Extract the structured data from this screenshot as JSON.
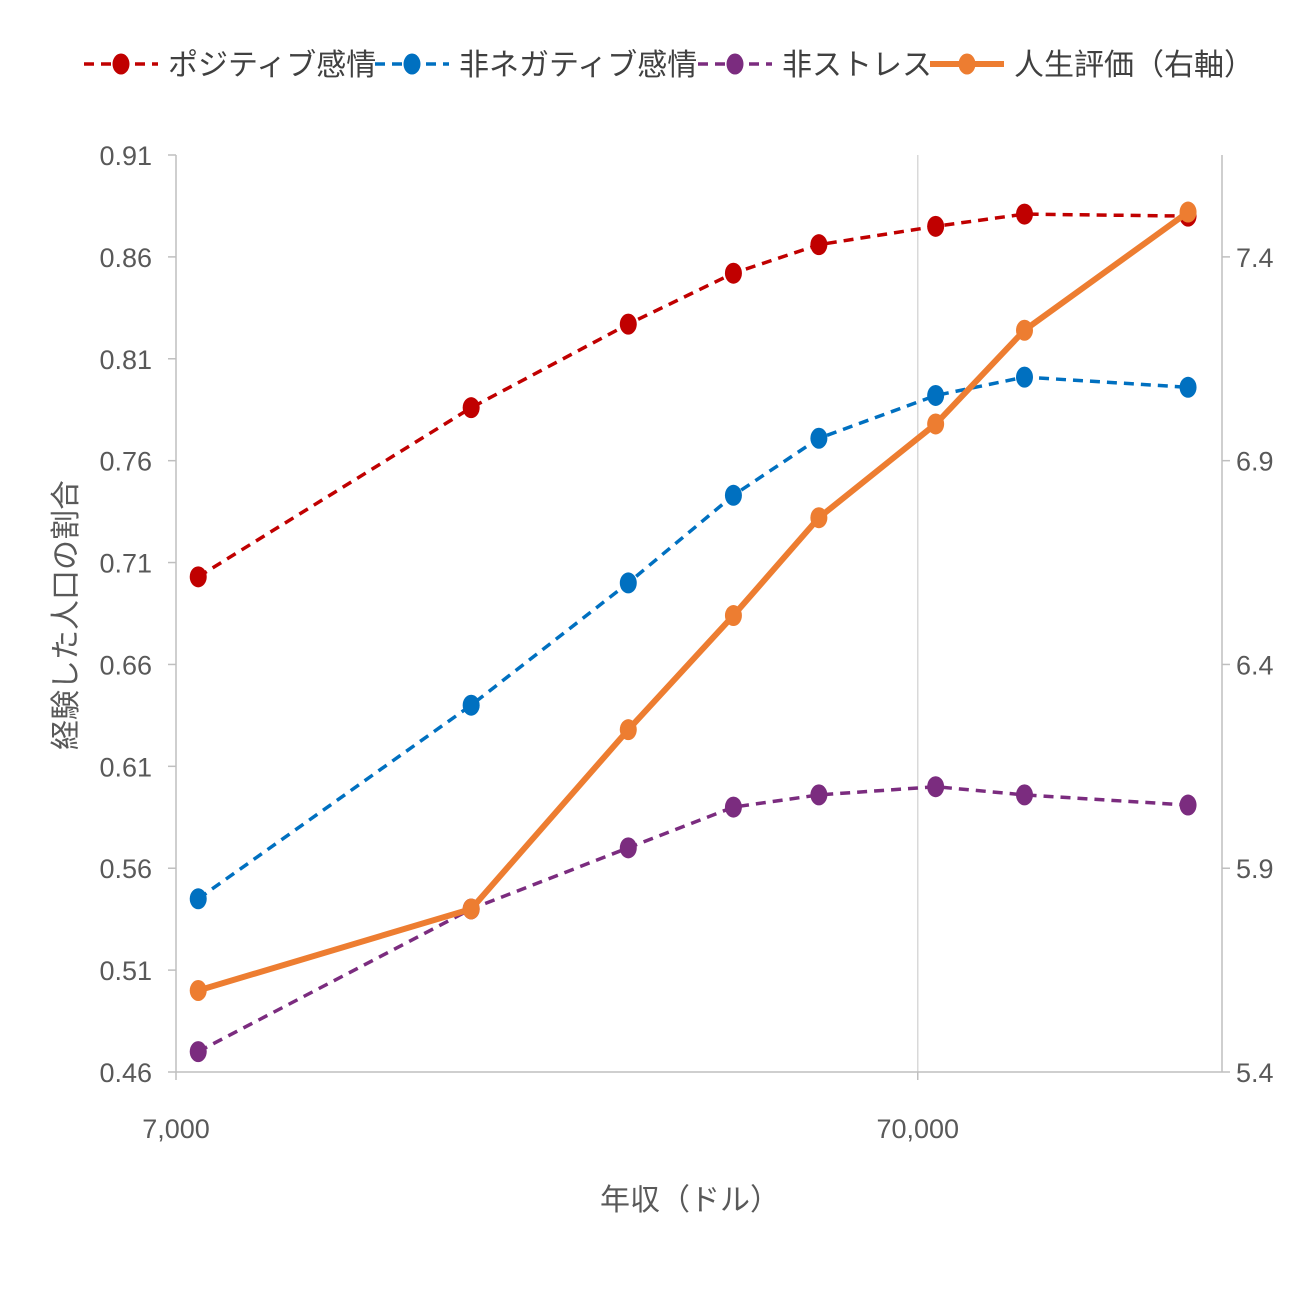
{
  "chart_data": {
    "type": "line",
    "xlabel": "年収（ドル）",
    "ylabel": "経験した人口の割合",
    "x_scale": "log",
    "xlim": [
      7000,
      180000
    ],
    "ylim": [
      0.46,
      0.91
    ],
    "y2lim": [
      5.4,
      7.65
    ],
    "x_ticks": [
      7000,
      70000
    ],
    "x_tick_labels": [
      "7,000",
      "70,000"
    ],
    "y_ticks": [
      0.46,
      0.51,
      0.56,
      0.61,
      0.66,
      0.71,
      0.76,
      0.81,
      0.86,
      0.91
    ],
    "y_tick_labels": [
      "0.46",
      "0.51",
      "0.56",
      "0.61",
      "0.66",
      "0.71",
      "0.76",
      "0.81",
      "0.86",
      "0.91"
    ],
    "y2_ticks": [
      5.4,
      5.9,
      6.4,
      6.9,
      7.4
    ],
    "y2_tick_labels": [
      "5.4",
      "5.9",
      "6.4",
      "6.9",
      "7.4"
    ],
    "x": [
      7500,
      17500,
      28500,
      39500,
      51500,
      74000,
      97500,
      162000
    ],
    "grid": "vertical line at 70,000",
    "legend_position": "top",
    "series": [
      {
        "name": "ポジティブ感情",
        "axis": "left",
        "style": "dashed",
        "color": "#C00000",
        "values": [
          0.703,
          0.786,
          0.827,
          0.852,
          0.866,
          0.875,
          0.881,
          0.88
        ]
      },
      {
        "name": "非ネガティブ感情",
        "axis": "left",
        "style": "dashed",
        "color": "#0070C0",
        "values": [
          0.545,
          0.64,
          0.7,
          0.743,
          0.771,
          0.792,
          0.801,
          0.796
        ]
      },
      {
        "name": "非ストレス",
        "axis": "left",
        "style": "dashed",
        "color": "#7B2C7F",
        "values": [
          0.47,
          0.54,
          0.57,
          0.59,
          0.596,
          0.6,
          0.596,
          0.591
        ]
      },
      {
        "name": "人生評価（右軸）",
        "axis": "right",
        "style": "solid",
        "color": "#ED7D31",
        "values": [
          5.6,
          5.8,
          6.24,
          6.52,
          6.76,
          6.99,
          7.22,
          7.51
        ]
      }
    ]
  }
}
